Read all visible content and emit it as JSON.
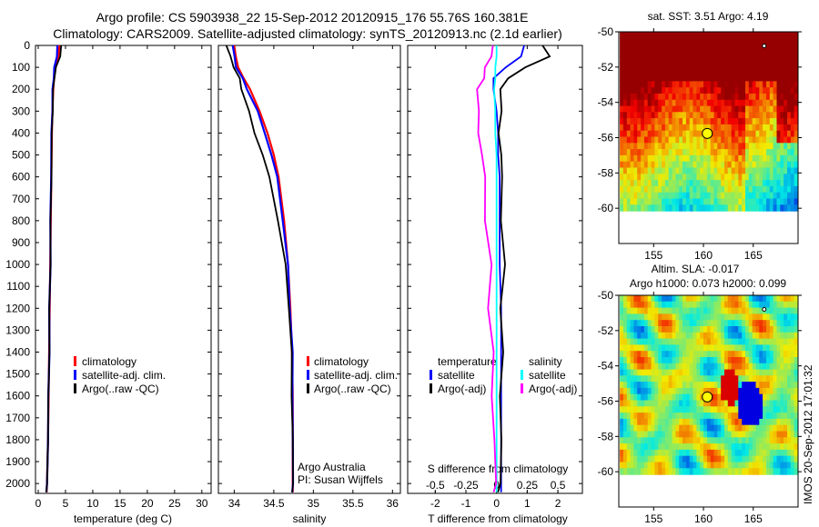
{
  "title": {
    "line1": "Argo profile: CS 5903938_22 15-Sep-2012 20120915_176 55.76S 160.381E",
    "line2": "Climatology: CARS2009. Satellite-adjusted climatology: synTS_20120913.nc (2.1d earlier)"
  },
  "timestamp": "IMOS 20-Sep-2012 17:01:32",
  "colors": {
    "climatology": "#ff0000",
    "satellite": "#0000ff",
    "argo": "#000000",
    "s_satellite": "#00ffff",
    "s_argo": "#ff00ff"
  },
  "chart_data": [
    {
      "type": "line",
      "name": "temperature",
      "xlabel": "temperature (deg C)",
      "xlim": [
        -0.5,
        31.7
      ],
      "ylim": [
        0,
        2045
      ],
      "xticks": [
        "0",
        "5",
        "10",
        "15",
        "20",
        "25",
        "30"
      ],
      "yticks": [
        "0",
        "100",
        "200",
        "300",
        "400",
        "500",
        "600",
        "700",
        "800",
        "900",
        "1000",
        "1100",
        "1200",
        "1300",
        "1400",
        "1500",
        "1600",
        "1700",
        "1800",
        "1900",
        "2000"
      ],
      "depth": [
        0,
        50,
        100,
        150,
        200,
        300,
        400,
        500,
        600,
        800,
        1000,
        1200,
        1400,
        1600,
        1800,
        2000,
        2040
      ],
      "legend": [
        "climatology",
        "satellite-adj. clim.",
        "Argo(..raw -QC)"
      ],
      "series": [
        {
          "name": "climatology",
          "values": [
            3.9,
            3.7,
            3.2,
            2.9,
            2.75,
            2.6,
            2.5,
            2.45,
            2.4,
            2.3,
            2.2,
            2.1,
            2.0,
            1.9,
            1.8,
            1.6,
            1.55
          ]
        },
        {
          "name": "satellite-adj. clim.",
          "values": [
            3.5,
            3.4,
            3.0,
            2.8,
            2.7,
            2.55,
            2.45,
            2.4,
            2.35,
            2.28,
            2.2,
            2.1,
            2.0,
            1.9,
            1.8,
            1.6,
            1.55
          ]
        },
        {
          "name": "Argo",
          "values": [
            4.2,
            4.0,
            3.3,
            2.9,
            2.8,
            2.6,
            2.5,
            2.45,
            2.4,
            2.3,
            2.2,
            2.1,
            2.0,
            1.9,
            1.8,
            1.6,
            1.55
          ]
        }
      ]
    },
    {
      "type": "line",
      "name": "salinity",
      "xlabel": "salinity",
      "xlim": [
        33.8,
        36.1
      ],
      "ylim": [
        0,
        2045
      ],
      "xticks": [
        "34",
        "34.5",
        "35",
        "35.5",
        "36"
      ],
      "depth": [
        0,
        50,
        100,
        150,
        200,
        300,
        400,
        500,
        600,
        800,
        1000,
        1200,
        1400,
        1600,
        1800,
        2000,
        2040
      ],
      "legend": [
        "climatology",
        "satellite-adj. clim.",
        "Argo(..raw -QC)"
      ],
      "annotation": [
        "Argo Australia",
        "PI: Susan Wijffels"
      ],
      "series": [
        {
          "name": "climatology",
          "values": [
            34.0,
            34.02,
            34.05,
            34.12,
            34.2,
            34.32,
            34.42,
            34.5,
            34.56,
            34.63,
            34.68,
            34.71,
            34.73,
            34.74,
            34.74,
            34.74,
            34.74
          ]
        },
        {
          "name": "satellite-adj. clim.",
          "values": [
            33.98,
            34.0,
            34.03,
            34.1,
            34.17,
            34.29,
            34.39,
            34.47,
            34.54,
            34.62,
            34.67,
            34.71,
            34.73,
            34.74,
            34.74,
            34.74,
            34.74
          ]
        },
        {
          "name": "Argo",
          "values": [
            33.9,
            33.95,
            34.0,
            34.06,
            34.1,
            34.18,
            34.26,
            34.36,
            34.44,
            34.56,
            34.64,
            34.7,
            34.72,
            34.73,
            34.74,
            34.74,
            34.74
          ]
        }
      ]
    },
    {
      "type": "line",
      "name": "difference",
      "xlabel": "T difference from climatology",
      "x2label": "S difference from climatology",
      "xlim": [
        -2.9,
        2.8
      ],
      "xticks": [
        "-2",
        "-1",
        "0",
        "1",
        "2"
      ],
      "x2ticks": [
        "-0.5",
        "-0.25",
        "0",
        "0.25",
        "0.5"
      ],
      "depth": [
        0,
        50,
        100,
        150,
        200,
        300,
        400,
        500,
        600,
        800,
        1000,
        1200,
        1400,
        1600,
        1800,
        2000,
        2040
      ],
      "legend_headers": [
        "temperature",
        "salinity"
      ],
      "legend": [
        "satellite",
        "Argo(-adj)",
        "satellite",
        "Argo(-adj)"
      ],
      "series": [
        {
          "name": "T satellite",
          "values": [
            0.9,
            0.8,
            0.3,
            -0.1,
            -0.1,
            0.0,
            0.05,
            0.05,
            0.1,
            0.1,
            0.1,
            0.15,
            0.15,
            0.15,
            0.15,
            0.15,
            0.15
          ]
        },
        {
          "name": "T Argo(-adj)",
          "values": [
            1.5,
            1.7,
            1.0,
            0.3,
            0.2,
            0.1,
            0.1,
            0.15,
            0.15,
            0.2,
            0.2,
            0.2,
            0.15,
            0.15,
            0.15,
            0.1,
            0.1
          ]
        },
        {
          "name": "S satellite",
          "values": [
            0.0,
            0.0,
            -0.01,
            -0.01,
            -0.02,
            -0.01,
            -0.01,
            0,
            0,
            0,
            0,
            0,
            0,
            0,
            0,
            0,
            0
          ]
        },
        {
          "name": "S Argo(-adj)",
          "values": [
            -0.03,
            -0.05,
            -0.08,
            -0.12,
            -0.14,
            -0.16,
            -0.14,
            -0.12,
            -0.1,
            -0.08,
            -0.06,
            -0.05,
            -0.04,
            -0.03,
            -0.02,
            -0.01,
            -0.01
          ]
        }
      ]
    },
    {
      "type": "heatmap",
      "name": "sst-map",
      "title": "sat. SST: 3.51 Argo: 4.19",
      "xlim": [
        151.5,
        169.5
      ],
      "ylim": [
        -62,
        -50
      ],
      "xticks": [
        "155",
        "160",
        "165"
      ],
      "yticks": [
        "-50",
        "-52",
        "-54",
        "-56",
        "-58",
        "-60"
      ],
      "marker": {
        "lon": 160.381,
        "lat": -55.76
      }
    },
    {
      "type": "heatmap",
      "name": "sla-map",
      "title": "Altim. SLA: -0.017",
      "subtitle": "Argo h1000: 0.073 h2000: 0.099",
      "xlim": [
        151.5,
        169.5
      ],
      "ylim": [
        -62,
        -50
      ],
      "xticks": [
        "155",
        "160",
        "165"
      ],
      "yticks": [
        "-50",
        "-52",
        "-54",
        "-56",
        "-58",
        "-60"
      ],
      "marker": {
        "lon": 160.381,
        "lat": -55.76
      }
    }
  ]
}
